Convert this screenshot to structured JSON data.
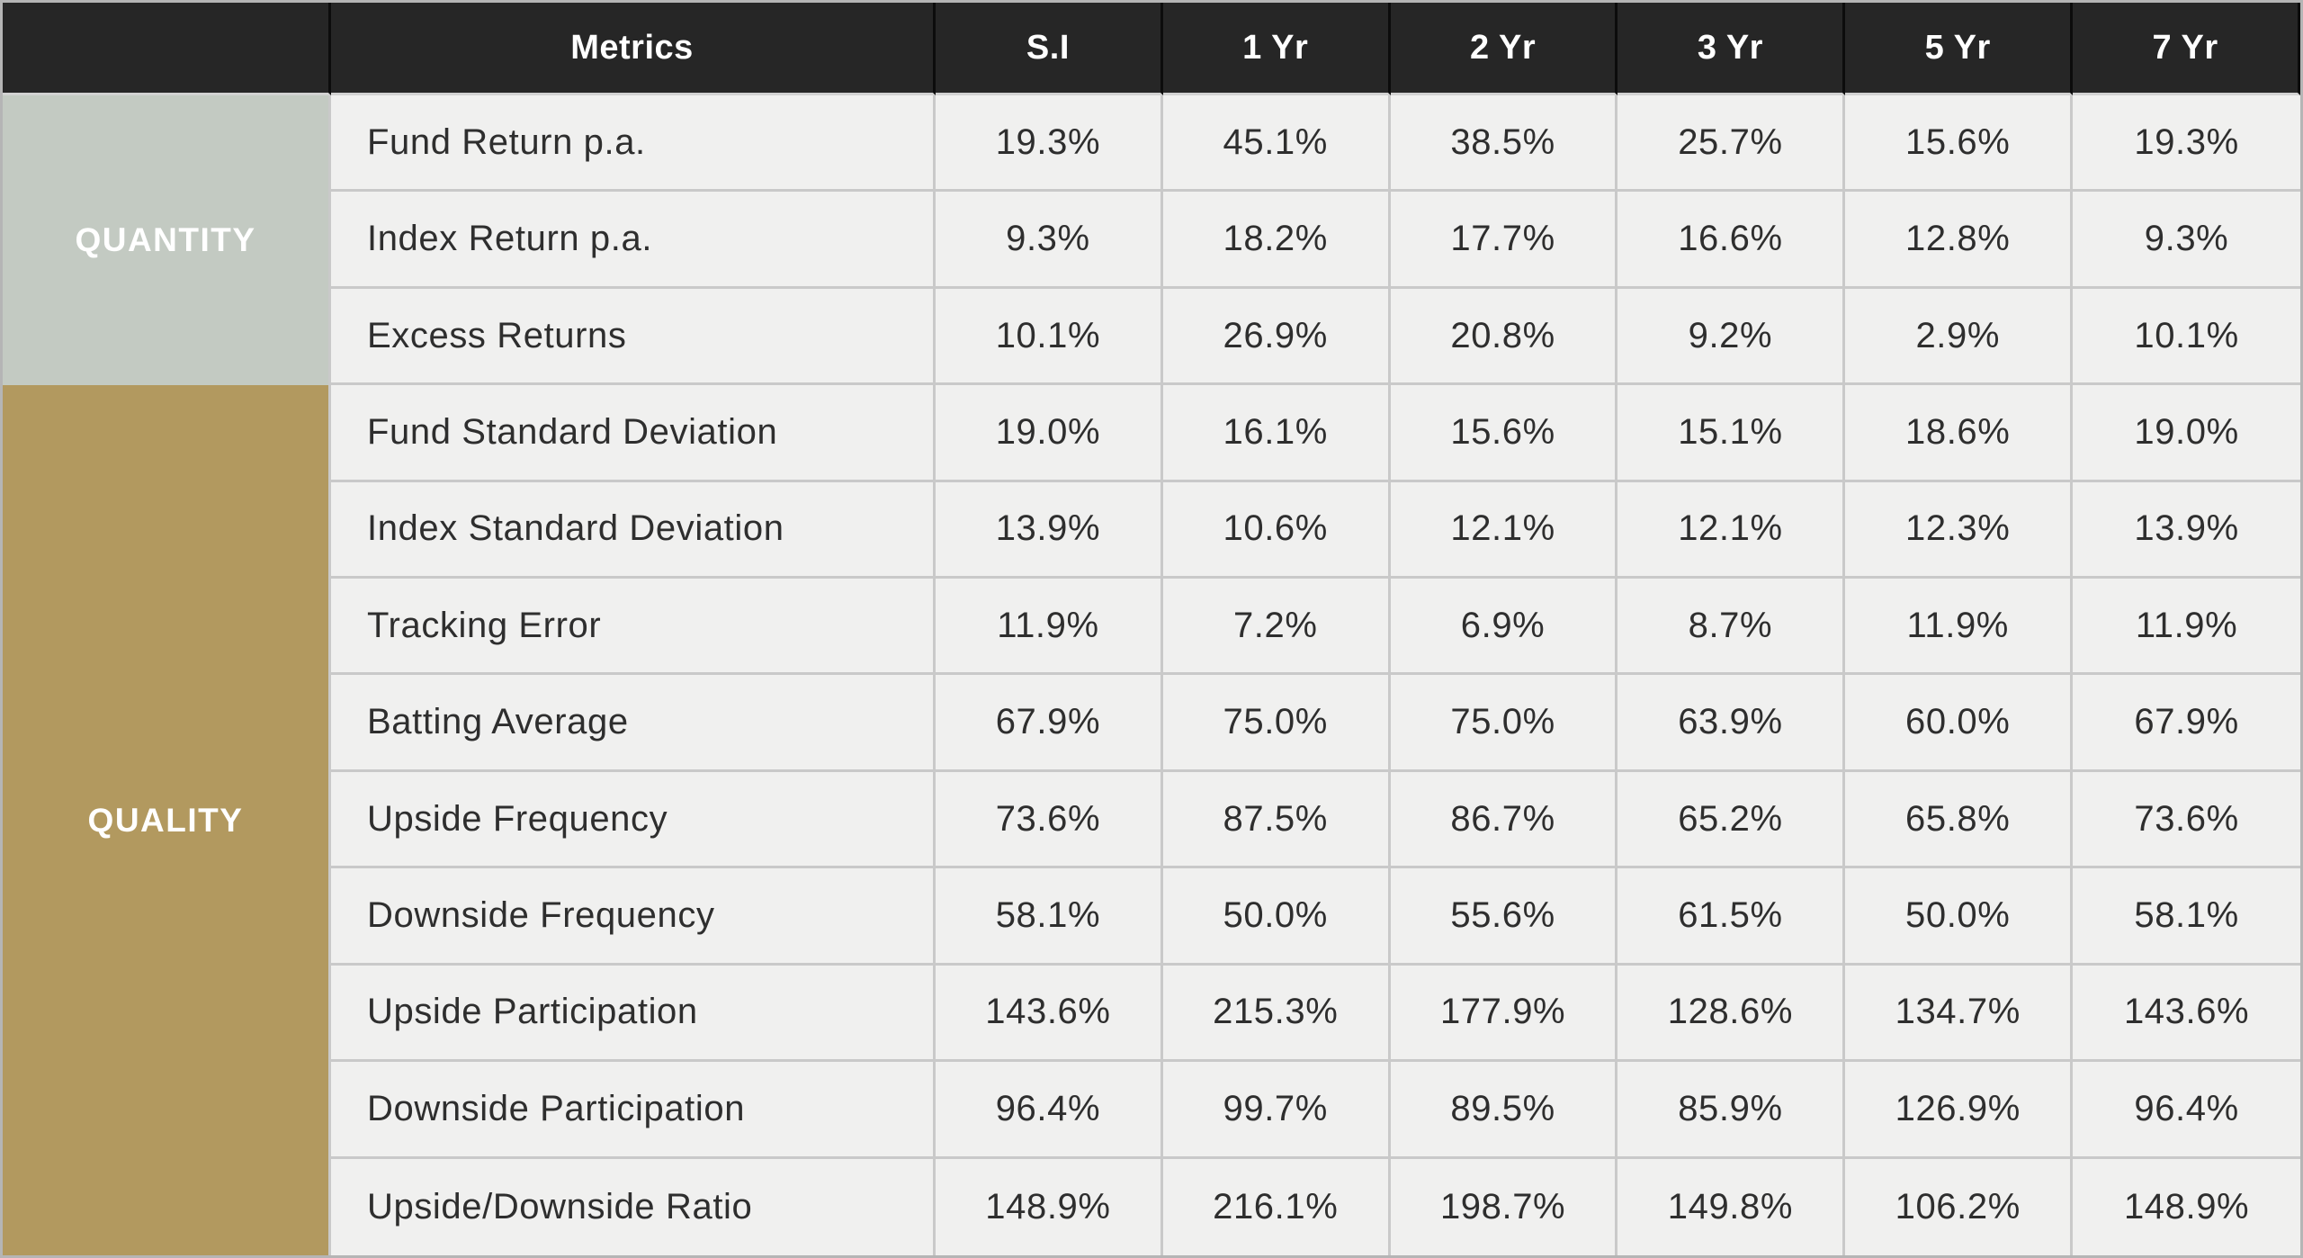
{
  "colors": {
    "header_bg": "#262626",
    "header_text": "#ffffff",
    "header_divider": "#0c0c0c",
    "body_bg": "#f0f0ef",
    "cell_text": "#2e2e2e",
    "grid_line": "#c9c9c9",
    "outer_border": "#b5b5b5",
    "quantity_bg": "#c3cac2",
    "quality_bg": "#b2995f"
  },
  "chart_data": {
    "type": "table",
    "title": "",
    "columns": [
      "Metrics",
      "S.I",
      "1 Yr",
      "2 Yr",
      "3 Yr",
      "5 Yr",
      "7 Yr"
    ],
    "row_groups": [
      {
        "label": "QUANTITY",
        "color": "#c3cac2",
        "rows": [
          {
            "metric": "Fund Return p.a.",
            "values": [
              "19.3%",
              "45.1%",
              "38.5%",
              "25.7%",
              "15.6%",
              "19.3%"
            ]
          },
          {
            "metric": "Index Return p.a.",
            "values": [
              "9.3%",
              "18.2%",
              "17.7%",
              "16.6%",
              "12.8%",
              "9.3%"
            ]
          },
          {
            "metric": "Excess Returns",
            "values": [
              "10.1%",
              "26.9%",
              "20.8%",
              "9.2%",
              "2.9%",
              "10.1%"
            ]
          }
        ]
      },
      {
        "label": "QUALITY",
        "color": "#b2995f",
        "rows": [
          {
            "metric": "Fund Standard Deviation",
            "values": [
              "19.0%",
              "16.1%",
              "15.6%",
              "15.1%",
              "18.6%",
              "19.0%"
            ]
          },
          {
            "metric": "Index Standard Deviation",
            "values": [
              "13.9%",
              "10.6%",
              "12.1%",
              "12.1%",
              "12.3%",
              "13.9%"
            ]
          },
          {
            "metric": "Tracking Error",
            "values": [
              "11.9%",
              "7.2%",
              "6.9%",
              "8.7%",
              "11.9%",
              "11.9%"
            ]
          },
          {
            "metric": "Batting Average",
            "values": [
              "67.9%",
              "75.0%",
              "75.0%",
              "63.9%",
              "60.0%",
              "67.9%"
            ]
          },
          {
            "metric": "Upside Frequency",
            "values": [
              "73.6%",
              "87.5%",
              "86.7%",
              "65.2%",
              "65.8%",
              "73.6%"
            ]
          },
          {
            "metric": "Downside Frequency",
            "values": [
              "58.1%",
              "50.0%",
              "55.6%",
              "61.5%",
              "50.0%",
              "58.1%"
            ]
          },
          {
            "metric": "Upside Participation",
            "values": [
              "143.6%",
              "215.3%",
              "177.9%",
              "128.6%",
              "134.7%",
              "143.6%"
            ]
          },
          {
            "metric": "Downside Participation",
            "values": [
              "96.4%",
              "99.7%",
              "89.5%",
              "85.9%",
              "126.9%",
              "96.4%"
            ]
          },
          {
            "metric": "Upside/Downside Ratio",
            "values": [
              "148.9%",
              "216.1%",
              "198.7%",
              "149.8%",
              "106.2%",
              "148.9%"
            ]
          }
        ]
      }
    ]
  }
}
